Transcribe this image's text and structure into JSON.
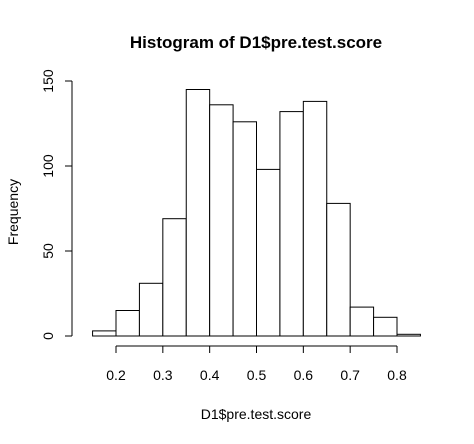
{
  "chart_data": {
    "type": "bar",
    "title": "Histogram of D1$pre.test.score",
    "xlabel": "D1$pre.test.score",
    "ylabel": "Frequency",
    "bin_edges": [
      0.15,
      0.2,
      0.25,
      0.3,
      0.35,
      0.4,
      0.45,
      0.5,
      0.55,
      0.6,
      0.65,
      0.7,
      0.75,
      0.8,
      0.85
    ],
    "values": [
      3,
      15,
      31,
      69,
      145,
      136,
      126,
      98,
      132,
      138,
      78,
      17,
      11,
      1
    ],
    "xticks": [
      0.2,
      0.3,
      0.4,
      0.5,
      0.6,
      0.7,
      0.8
    ],
    "xtick_labels": [
      "0.2",
      "0.3",
      "0.4",
      "0.5",
      "0.6",
      "0.7",
      "0.8"
    ],
    "yticks": [
      0,
      50,
      100,
      150
    ],
    "ytick_labels": [
      "0",
      "50",
      "100",
      "150"
    ],
    "xlim": [
      0.15,
      0.85
    ],
    "ylim": [
      0,
      150
    ],
    "grid": false,
    "bar_fill": "#ffffff",
    "bar_stroke": "#000000"
  }
}
